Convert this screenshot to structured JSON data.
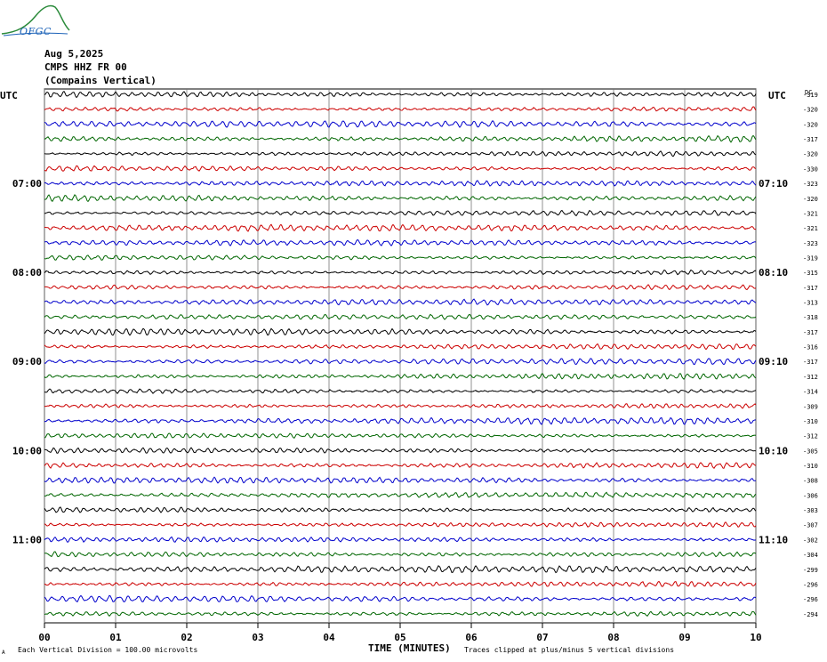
{
  "header": {
    "date": "Aug 5,2025",
    "station": "CMPS HHZ FR 00",
    "location": "(Compains Vertical)"
  },
  "logo": {
    "text": "OFGC",
    "icon": "mountain-logo"
  },
  "chart_data": {
    "type": "line",
    "title": "Aug 5,2025 CMPS HHZ FR 00 (Compains Vertical)",
    "xlabel": "TIME (MINUTES)",
    "x_ticks": [
      "00",
      "01",
      "02",
      "03",
      "04",
      "05",
      "06",
      "07",
      "08",
      "09",
      "10"
    ],
    "xlim": [
      0,
      10
    ],
    "left_axis_label": "UTC",
    "right_axis_label": "UTC",
    "dc_label": "DC",
    "left_time_labels": [
      {
        "row": 6,
        "label": "07:00"
      },
      {
        "row": 12,
        "label": "08:00"
      },
      {
        "row": 18,
        "label": "09:00"
      },
      {
        "row": 24,
        "label": "10:00"
      },
      {
        "row": 30,
        "label": "11:00"
      }
    ],
    "right_time_labels": [
      {
        "row": 6,
        "label": "07:10"
      },
      {
        "row": 12,
        "label": "08:10"
      },
      {
        "row": 18,
        "label": "09:10"
      },
      {
        "row": 24,
        "label": "10:10"
      },
      {
        "row": 30,
        "label": "11:10"
      }
    ],
    "trace_colors": [
      "#000000",
      "#cc0000",
      "#0000cc",
      "#006600"
    ],
    "dc_offsets": [
      -319,
      -320,
      -320,
      -317,
      -320,
      -330,
      -323,
      -320,
      -321,
      -321,
      -323,
      -319,
      -315,
      -317,
      -313,
      -318,
      -317,
      -316,
      -317,
      -312,
      -314,
      -309,
      -310,
      -312,
      -305,
      -310,
      -308,
      -306,
      -303,
      -307,
      -302,
      -304,
      -299,
      -296,
      -296,
      -294
    ],
    "trace_minutes": 10,
    "grid": true
  },
  "footer": {
    "scale_text": "Each Vertical Division =  100.00 microvolts",
    "clip_text": "Traces clipped at plus/minus 5 vertical divisions",
    "corner_mark": "A"
  }
}
